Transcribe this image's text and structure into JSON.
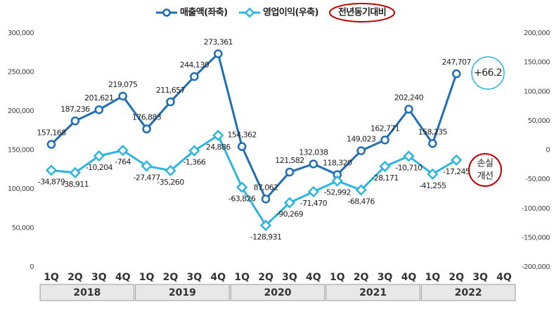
{
  "chart_data": {
    "type": "line",
    "categories": [
      "1Q",
      "2Q",
      "3Q",
      "4Q",
      "1Q",
      "2Q",
      "3Q",
      "4Q",
      "1Q",
      "2Q",
      "3Q",
      "4Q",
      "1Q",
      "2Q",
      "3Q",
      "4Q",
      "1Q",
      "2Q",
      "3Q",
      "4Q"
    ],
    "groups": [
      "2018",
      "2019",
      "2020",
      "2021",
      "2022"
    ],
    "series": [
      {
        "name": "매출액(좌축)",
        "color": "#1f6db3",
        "axis": "y",
        "values": [
          157168,
          187236,
          201621,
          219075,
          176883,
          211657,
          244130,
          273361,
          154362,
          87062,
          121582,
          132038,
          118320,
          149023,
          162771,
          202240,
          158235,
          247707,
          null,
          null
        ],
        "value_labels": [
          "157,168",
          "187,236",
          "201,621",
          "219,075",
          "176,883",
          "211,657",
          "244,130",
          "273,361",
          "154,362",
          "87,062",
          "121,582",
          "132,038",
          "118,320",
          "149,023",
          "162,771",
          "202,240",
          "158,235",
          "247,707",
          null,
          null
        ]
      },
      {
        "name": "영업이익(우축)",
        "color": "#2bb5e0",
        "axis": "y2",
        "values": [
          -34879,
          -38911,
          -10204,
          -764,
          -27477,
          -35260,
          -1366,
          24886,
          -63826,
          -128931,
          -90269,
          -71470,
          -52992,
          -68476,
          -28171,
          -10710,
          -41255,
          -17245,
          null,
          null
        ],
        "value_labels": [
          "-34,879",
          "-38,911",
          "-10,204",
          "-764",
          "-27,477",
          "-35,260",
          "-1,366",
          "24,886",
          "-63,826",
          "-128,931",
          "-90,269",
          "-71,470",
          "-52,992",
          "-68,476",
          "-28,171",
          "-10,710",
          "-41,255",
          "-17,245",
          null,
          null
        ]
      }
    ],
    "ylim": [
      0,
      300000
    ],
    "yticks": [
      0,
      {
        "value": 50000,
        "label": "50,000"
      },
      {
        "value": 100000,
        "label": "100,000"
      },
      {
        "value": 150000,
        "label": "150,000"
      },
      {
        "value": 200000,
        "label": "200,000"
      },
      {
        "value": 250000,
        "label": "250,000"
      },
      {
        "value": 300000,
        "label": "300,000"
      }
    ],
    "y2lim": [
      -200000,
      200000
    ],
    "y2ticks": [
      {
        "value": -200000,
        "label": "-200,000"
      },
      {
        "value": -150000,
        "label": "-150,000"
      },
      {
        "value": -100000,
        "label": "-100,000"
      },
      {
        "value": -50000,
        "label": "-50,000"
      },
      0,
      {
        "value": 50000,
        "label": "50,000"
      },
      {
        "value": 100000,
        "label": "100,000"
      },
      {
        "value": 150000,
        "label": "150,000"
      },
      {
        "value": 200000,
        "label": "200,000"
      }
    ],
    "grid": false,
    "annotations": [
      "전년동기대비",
      "+66.2",
      "손실",
      "개선"
    ]
  }
}
